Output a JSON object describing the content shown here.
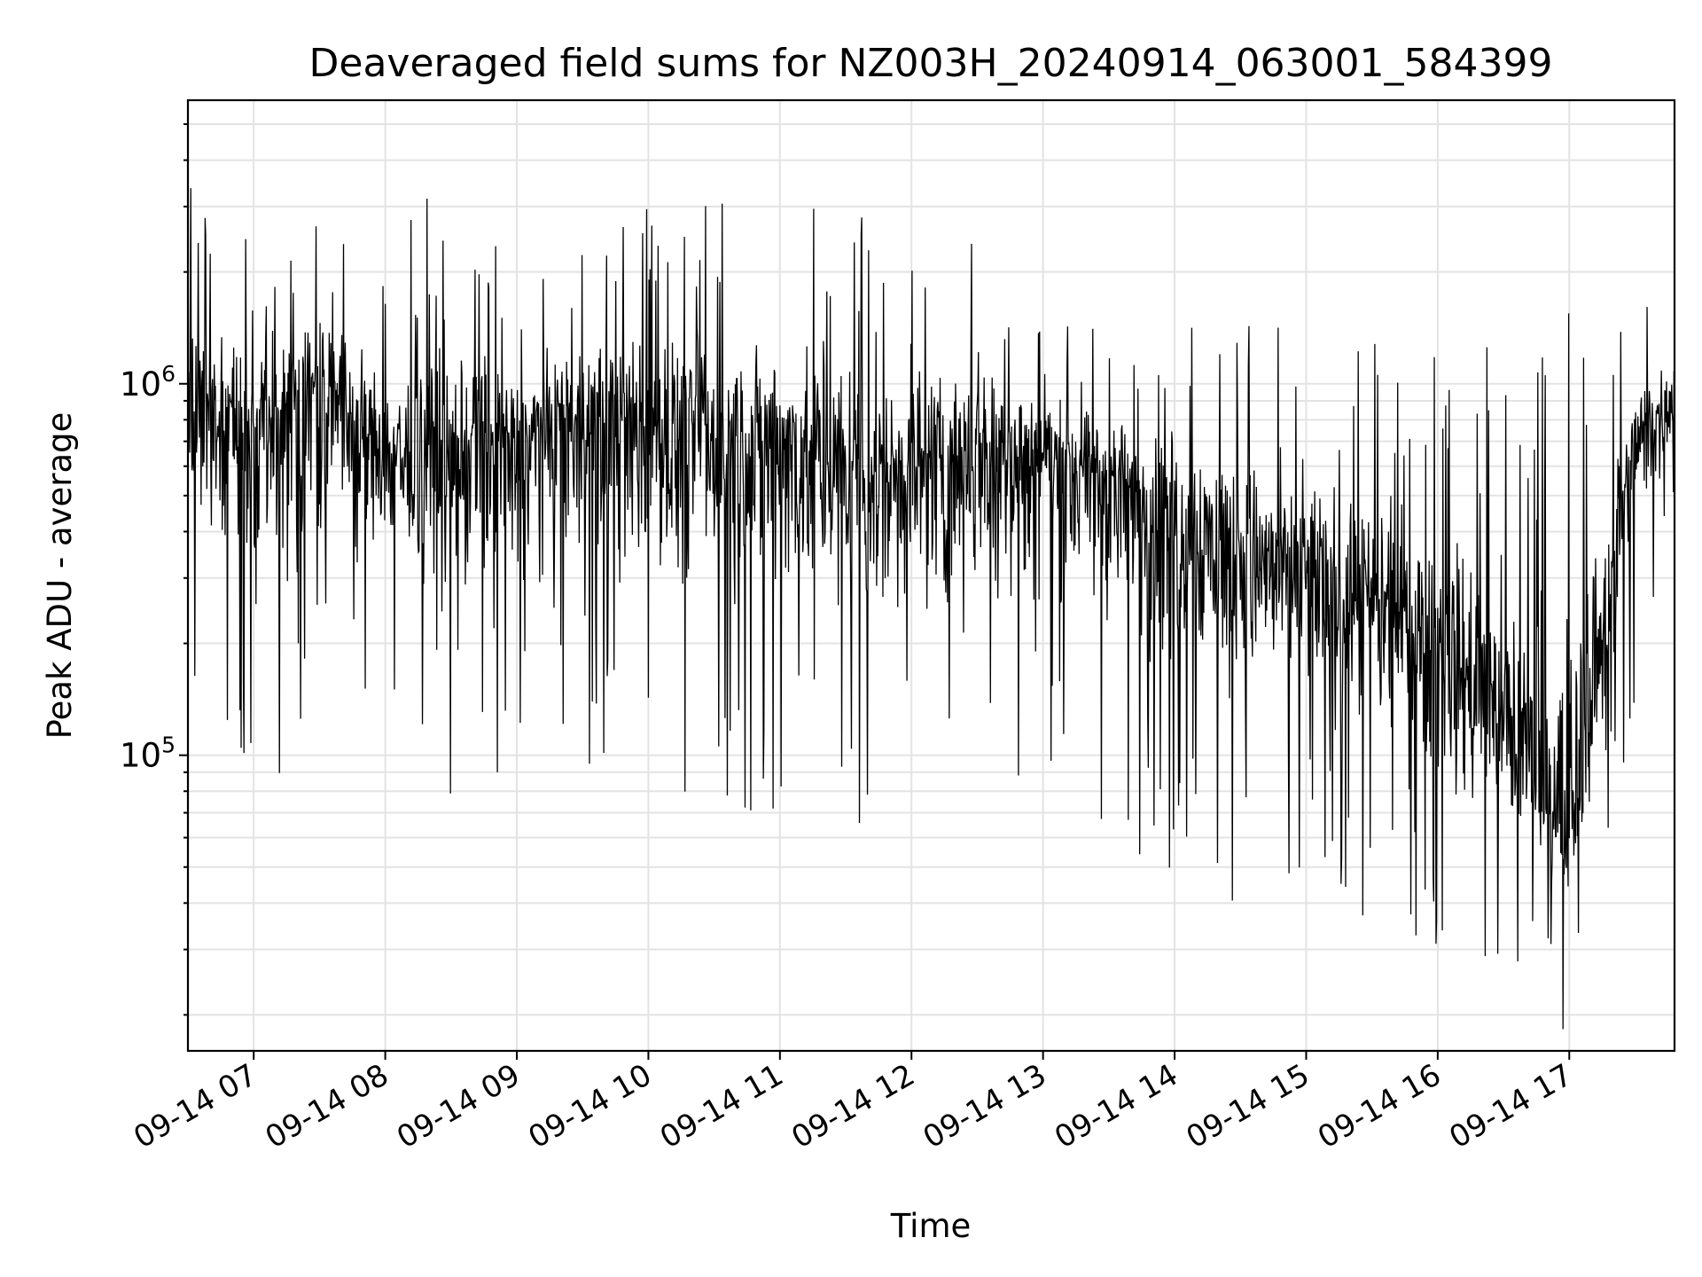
{
  "chart_data": {
    "type": "line",
    "title": "Deaveraged field sums for NZ003H_20240914_063001_584399",
    "xlabel": "Time",
    "ylabel": "Peak ADU - average",
    "yscale": "log",
    "ylim": [
      16000,
      5800000
    ],
    "xlim": [
      "2024-09-14 06:30",
      "2024-09-14 17:48"
    ],
    "x_ticks": [
      {
        "label": "09-14 07",
        "time": "2024-09-14 07:00"
      },
      {
        "label": "09-14 08",
        "time": "2024-09-14 08:00"
      },
      {
        "label": "09-14 09",
        "time": "2024-09-14 09:00"
      },
      {
        "label": "09-14 10",
        "time": "2024-09-14 10:00"
      },
      {
        "label": "09-14 11",
        "time": "2024-09-14 11:00"
      },
      {
        "label": "09-14 12",
        "time": "2024-09-14 12:00"
      },
      {
        "label": "09-14 13",
        "time": "2024-09-14 13:00"
      },
      {
        "label": "09-14 14",
        "time": "2024-09-14 14:00"
      },
      {
        "label": "09-14 15",
        "time": "2024-09-14 15:00"
      },
      {
        "label": "09-14 16",
        "time": "2024-09-14 16:00"
      },
      {
        "label": "09-14 17",
        "time": "2024-09-14 17:00"
      }
    ],
    "y_ticks": [
      {
        "base": "10",
        "exp": "5",
        "value": 100000
      },
      {
        "base": "10",
        "exp": "6",
        "value": 1000000
      }
    ],
    "grid": true,
    "series": [
      {
        "color": "#000000",
        "x": [
          "2024-09-14 06:30",
          "2024-09-14 07:00",
          "2024-09-14 07:30",
          "2024-09-14 08:00",
          "2024-09-14 08:30",
          "2024-09-14 09:00",
          "2024-09-14 09:30",
          "2024-09-14 10:00",
          "2024-09-14 10:30",
          "2024-09-14 11:00",
          "2024-09-14 11:30",
          "2024-09-14 12:00",
          "2024-09-14 12:30",
          "2024-09-14 13:00",
          "2024-09-14 13:30",
          "2024-09-14 14:00",
          "2024-09-14 14:30",
          "2024-09-14 15:00",
          "2024-09-14 15:30",
          "2024-09-14 16:00",
          "2024-09-14 16:30",
          "2024-09-14 17:00",
          "2024-09-14 17:30",
          "2024-09-14 17:48"
        ],
        "median": [
          900000,
          750000,
          1000000,
          650000,
          600000,
          700000,
          800000,
          750000,
          700000,
          700000,
          550000,
          600000,
          700000,
          650000,
          550000,
          450000,
          350000,
          300000,
          250000,
          200000,
          120000,
          60000,
          700000,
          900000
        ],
        "high": [
          3500000,
          2500000,
          2700000,
          2200000,
          4000000,
          2000000,
          3000000,
          3000000,
          3500000,
          3000000,
          3500000,
          2500000,
          3000000,
          1500000,
          1400000,
          1600000,
          1600000,
          1400000,
          1300000,
          1200000,
          1300000,
          1800000,
          1700000,
          1900000
        ],
        "low": [
          150000,
          70000,
          120000,
          120000,
          75000,
          80000,
          90000,
          75000,
          80000,
          60000,
          55000,
          60000,
          65000,
          75000,
          60000,
          45000,
          38000,
          45000,
          30000,
          28000,
          20000,
          18000,
          130000,
          400000
        ]
      }
    ]
  }
}
